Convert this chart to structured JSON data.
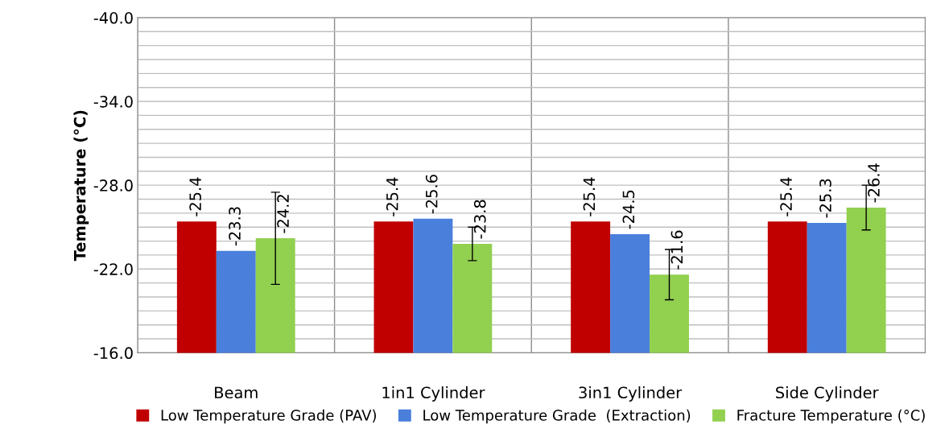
{
  "chart_data": {
    "type": "bar",
    "ylabel": "Temperature (°C)",
    "categories": [
      "Beam",
      "1in1 Cylinder",
      "3in1 Cylinder",
      "Side Cylinder"
    ],
    "series": [
      {
        "name": "Low Temperature Grade (PAV)",
        "color": "#c00000",
        "values": [
          -25.4,
          -25.4,
          -25.4,
          -25.4
        ]
      },
      {
        "name": "Low Temperature Grade  (Extraction)",
        "color": "#4a7fdc",
        "values": [
          -23.3,
          -25.6,
          -24.5,
          -25.3
        ]
      },
      {
        "name": "Fracture Temperature (°C)",
        "color": "#92d050",
        "values": [
          -24.2,
          -23.8,
          -21.6,
          -26.4
        ],
        "errors": [
          3.3,
          1.2,
          1.8,
          1.6
        ]
      }
    ],
    "ylim": [
      -16,
      -40
    ],
    "yticks": [
      {
        "value": -40,
        "label": "-40.0"
      },
      {
        "value": -39,
        "label": null
      },
      {
        "value": -38,
        "label": null
      },
      {
        "value": -37,
        "label": null
      },
      {
        "value": -36,
        "label": null
      },
      {
        "value": -35,
        "label": null
      },
      {
        "value": -34,
        "label": "-34.0"
      },
      {
        "value": -33,
        "label": null
      },
      {
        "value": -32,
        "label": null
      },
      {
        "value": -31,
        "label": null
      },
      {
        "value": -30,
        "label": null
      },
      {
        "value": -29,
        "label": null
      },
      {
        "value": -28,
        "label": "-28.0"
      },
      {
        "value": -27,
        "label": null
      },
      {
        "value": -26,
        "label": null
      },
      {
        "value": -25,
        "label": null
      },
      {
        "value": -24,
        "label": null
      },
      {
        "value": -23,
        "label": null
      },
      {
        "value": -22,
        "label": "-22.0"
      },
      {
        "value": -21,
        "label": null
      },
      {
        "value": -20,
        "label": null
      },
      {
        "value": -19,
        "label": null
      },
      {
        "value": -18,
        "label": null
      },
      {
        "value": -17,
        "label": null
      },
      {
        "value": -16,
        "label": "-16.0"
      }
    ],
    "grid": true,
    "data_labels": true,
    "legend": "bottom"
  }
}
